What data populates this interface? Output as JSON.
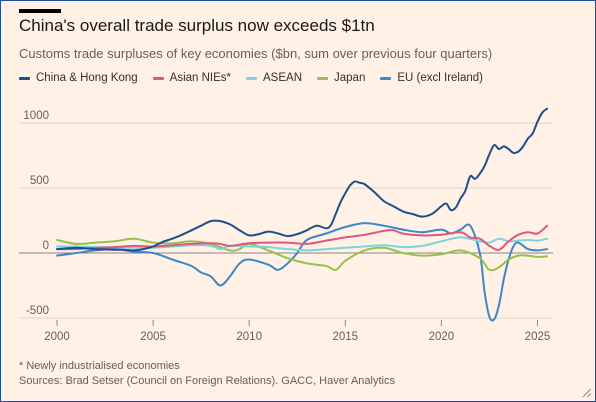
{
  "title": "China's overall trade surplus now exceeds $1tn",
  "subtitle": "Customs trade surpluses of key economies ($bn, sum over previous four quarters)",
  "footnote": "* Newly industrialised economies",
  "sources": "Sources: Brad Setser (Council on Foreign Relations). GACC, Haver Analytics",
  "colors": {
    "background": "#fff1e5",
    "grid": "#d8cdc3",
    "zero_line": "#8c8580",
    "axis_text": "#66605c",
    "accent_bar": "#000000",
    "window_border": "#1f4e9a"
  },
  "chart_data": {
    "type": "line",
    "title": "China's overall trade surplus now exceeds $1tn",
    "subtitle": "Customs trade surpluses of key economies ($bn, sum over previous four quarters)",
    "xlabel": "",
    "ylabel": "",
    "xlim": [
      2000,
      2025.6
    ],
    "ylim": [
      -500,
      1100
    ],
    "x_ticks": [
      2000,
      2005,
      2010,
      2015,
      2020,
      2025
    ],
    "x_tick_labels": [
      "2000",
      "2005",
      "2010",
      "2015",
      "2020",
      "2025"
    ],
    "y_ticks": [
      -500,
      0,
      500,
      1000
    ],
    "y_tick_labels": [
      "-500",
      "0",
      "500",
      "1000"
    ],
    "grid": "horizontal",
    "legend_position": "top",
    "series": [
      {
        "name": "China & Hong Kong",
        "color": "#1f4e8c",
        "x": [
          2000,
          2000.5,
          2001,
          2001.5,
          2002,
          2002.5,
          2003,
          2003.5,
          2004,
          2004.5,
          2005,
          2005.5,
          2006,
          2006.5,
          2007,
          2007.5,
          2008,
          2008.5,
          2009,
          2009.5,
          2010,
          2010.5,
          2011,
          2011.5,
          2012,
          2012.5,
          2013,
          2013.5,
          2014,
          2014.25,
          2014.5,
          2014.75,
          2015,
          2015.25,
          2015.5,
          2015.75,
          2016,
          2016.5,
          2017,
          2017.5,
          2018,
          2018.5,
          2019,
          2019.5,
          2020,
          2020.25,
          2020.5,
          2020.75,
          2021,
          2021.25,
          2021.5,
          2021.75,
          2022,
          2022.25,
          2022.5,
          2022.75,
          2023,
          2023.25,
          2023.5,
          2023.75,
          2024,
          2024.25,
          2024.5,
          2024.75,
          2025,
          2025.25,
          2025.5
        ],
        "values": [
          30,
          35,
          40,
          35,
          30,
          28,
          25,
          25,
          20,
          30,
          50,
          85,
          110,
          140,
          175,
          210,
          245,
          245,
          220,
          175,
          135,
          145,
          165,
          150,
          130,
          145,
          175,
          210,
          190,
          215,
          300,
          390,
          460,
          520,
          550,
          540,
          530,
          470,
          400,
          360,
          320,
          300,
          280,
          300,
          360,
          380,
          330,
          350,
          420,
          480,
          590,
          570,
          610,
          670,
          760,
          830,
          800,
          820,
          800,
          770,
          780,
          820,
          880,
          920,
          1010,
          1080,
          1110
        ]
      },
      {
        "name": "Asian NIEs*",
        "color": "#e0577d",
        "x": [
          2000,
          2001,
          2002,
          2003,
          2004,
          2005,
          2006,
          2007,
          2008,
          2008.5,
          2009,
          2010,
          2011,
          2012,
          2013,
          2014,
          2015,
          2016,
          2017,
          2017.5,
          2018,
          2019,
          2020,
          2021,
          2021.5,
          2022,
          2022.5,
          2023,
          2023.5,
          2024,
          2024.5,
          2025,
          2025.5
        ],
        "values": [
          30,
          30,
          40,
          45,
          55,
          50,
          60,
          70,
          75,
          70,
          55,
          75,
          80,
          80,
          70,
          95,
          120,
          140,
          170,
          175,
          150,
          135,
          140,
          160,
          120,
          110,
          55,
          25,
          90,
          140,
          160,
          150,
          210
        ]
      },
      {
        "name": "ASEAN",
        "color": "#7dd3df",
        "x": [
          2000,
          2001,
          2002,
          2003,
          2004,
          2005,
          2006,
          2007,
          2008,
          2008.5,
          2009,
          2010,
          2011,
          2012,
          2013,
          2014,
          2015,
          2016,
          2017,
          2018,
          2019,
          2020,
          2021,
          2022,
          2022.5,
          2023,
          2023.5,
          2024,
          2024.5,
          2025,
          2025.5
        ],
        "values": [
          50,
          50,
          45,
          45,
          40,
          40,
          50,
          60,
          55,
          30,
          55,
          50,
          45,
          30,
          20,
          30,
          40,
          50,
          60,
          45,
          55,
          90,
          120,
          90,
          80,
          110,
          90,
          95,
          100,
          95,
          110
        ]
      },
      {
        "name": "Japan",
        "color": "#96c14b",
        "x": [
          2000,
          2001,
          2002,
          2003,
          2004,
          2005,
          2006,
          2007,
          2008,
          2009,
          2009.5,
          2010,
          2011,
          2012,
          2013,
          2014,
          2014.5,
          2015,
          2016,
          2017,
          2018,
          2019,
          2020,
          2021,
          2022,
          2022.5,
          2023,
          2023.5,
          2024,
          2024.5,
          2025,
          2025.5
        ],
        "values": [
          100,
          70,
          80,
          90,
          110,
          80,
          75,
          90,
          70,
          20,
          30,
          70,
          20,
          -40,
          -80,
          -100,
          -130,
          -60,
          20,
          40,
          0,
          -20,
          -10,
          20,
          -40,
          -130,
          -110,
          -50,
          -20,
          -20,
          -30,
          -25
        ]
      },
      {
        "name": "EU (excl Ireland)",
        "color": "#3a88c8",
        "x": [
          2000,
          2001,
          2002,
          2003,
          2004,
          2005,
          2006,
          2007,
          2007.5,
          2008,
          2008.5,
          2009,
          2009.5,
          2010,
          2011,
          2011.5,
          2012,
          2012.5,
          2013,
          2014,
          2015,
          2016,
          2017,
          2018,
          2019,
          2020,
          2020.5,
          2021,
          2021.5,
          2022,
          2022.25,
          2022.5,
          2022.75,
          2023,
          2023.25,
          2023.5,
          2023.75,
          2024,
          2024.5,
          2025,
          2025.5
        ],
        "values": [
          -20,
          0,
          20,
          30,
          10,
          0,
          -50,
          -100,
          -150,
          -180,
          -250,
          -180,
          -80,
          -50,
          -90,
          -130,
          -80,
          0,
          100,
          150,
          200,
          230,
          210,
          180,
          160,
          180,
          150,
          180,
          210,
          0,
          -300,
          -490,
          -510,
          -400,
          -200,
          -50,
          50,
          80,
          30,
          20,
          30
        ]
      }
    ]
  }
}
